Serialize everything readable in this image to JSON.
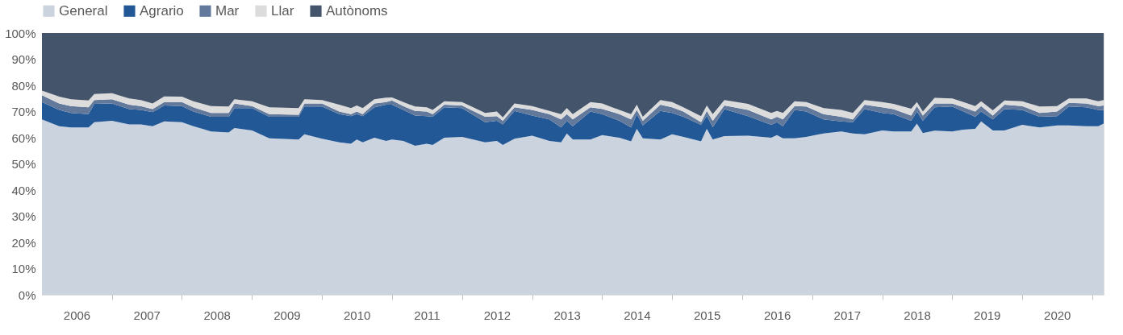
{
  "chart_data": {
    "type": "area",
    "stacked": true,
    "legend": "top",
    "grid": false,
    "x": [
      "2006-01",
      "2006-04",
      "2006-06",
      "2006-09",
      "2006-10",
      "2007-01",
      "2007-04",
      "2007-06",
      "2007-08",
      "2007-10",
      "2008-01",
      "2008-03",
      "2008-06",
      "2008-09",
      "2008-10",
      "2009-01",
      "2009-04",
      "2009-09",
      "2009-10",
      "2010-01",
      "2010-04",
      "2010-06",
      "2010-07",
      "2010-08",
      "2010-10",
      "2010-12",
      "2011-01",
      "2011-03",
      "2011-05",
      "2011-07",
      "2011-08",
      "2011-10",
      "2012-01",
      "2012-05",
      "2012-07",
      "2012-08",
      "2012-10",
      "2013-01",
      "2013-04",
      "2013-06",
      "2013-07",
      "2013-08",
      "2013-11",
      "2014-01",
      "2014-04",
      "2014-06",
      "2014-07",
      "2014-08",
      "2014-11",
      "2015-01",
      "2015-03",
      "2015-06",
      "2015-07",
      "2015-08",
      "2015-10",
      "2016-02",
      "2016-06",
      "2016-07",
      "2016-08",
      "2016-10",
      "2016-12",
      "2017-03",
      "2017-06",
      "2017-08",
      "2017-10",
      "2018-01",
      "2018-03",
      "2018-06",
      "2018-07",
      "2018-08",
      "2018-10",
      "2019-01",
      "2019-03",
      "2019-05",
      "2019-06",
      "2019-08",
      "2019-10",
      "2020-01",
      "2020-04",
      "2020-07",
      "2020-09",
      "2020-12",
      "2021-02",
      "2021-03"
    ],
    "xlim": [
      "2006-01",
      "2021-03"
    ],
    "xticks": [
      {
        "value": "2006-07",
        "label": "2006"
      },
      {
        "value": "2007-01",
        "label": null
      },
      {
        "value": "2007-07",
        "label": "2007"
      },
      {
        "value": "2008-01",
        "label": null
      },
      {
        "value": "2008-07",
        "label": "2008"
      },
      {
        "value": "2009-01",
        "label": null
      },
      {
        "value": "2009-07",
        "label": "2009"
      },
      {
        "value": "2010-01",
        "label": null
      },
      {
        "value": "2010-07",
        "label": "2010"
      },
      {
        "value": "2011-01",
        "label": null
      },
      {
        "value": "2011-07",
        "label": "2011"
      },
      {
        "value": "2012-01",
        "label": null
      },
      {
        "value": "2012-07",
        "label": "2012"
      },
      {
        "value": "2013-01",
        "label": null
      },
      {
        "value": "2013-07",
        "label": "2013"
      },
      {
        "value": "2014-01",
        "label": null
      },
      {
        "value": "2014-07",
        "label": "2014"
      },
      {
        "value": "2015-01",
        "label": null
      },
      {
        "value": "2015-07",
        "label": "2015"
      },
      {
        "value": "2016-01",
        "label": null
      },
      {
        "value": "2016-07",
        "label": "2016"
      },
      {
        "value": "2017-01",
        "label": null
      },
      {
        "value": "2017-07",
        "label": "2017"
      },
      {
        "value": "2018-01",
        "label": null
      },
      {
        "value": "2018-07",
        "label": "2018"
      },
      {
        "value": "2019-01",
        "label": null
      },
      {
        "value": "2019-07",
        "label": "2019"
      },
      {
        "value": "2020-01",
        "label": null
      },
      {
        "value": "2020-07",
        "label": "2020"
      },
      {
        "value": "2021-01",
        "label": null
      }
    ],
    "ylim": [
      0,
      100
    ],
    "yticks": [
      {
        "value": 0,
        "label": "0%"
      },
      {
        "value": 10,
        "label": "10%"
      },
      {
        "value": 20,
        "label": "20%"
      },
      {
        "value": 30,
        "label": "30%"
      },
      {
        "value": 40,
        "label": "40%"
      },
      {
        "value": 50,
        "label": "50%"
      },
      {
        "value": 60,
        "label": "60%"
      },
      {
        "value": 70,
        "label": "70%"
      },
      {
        "value": 80,
        "label": "80%"
      },
      {
        "value": 90,
        "label": "90%"
      },
      {
        "value": 100,
        "label": "100%"
      }
    ],
    "series": [
      {
        "name": "General",
        "color": "#cbd3df",
        "values": [
          67.0,
          64.4,
          63.9,
          63.9,
          65.9,
          66.5,
          65.1,
          65.1,
          64.4,
          66.2,
          65.9,
          64.4,
          62.4,
          62.0,
          63.7,
          62.8,
          59.8,
          59.3,
          61.3,
          59.6,
          58.2,
          57.7,
          59.3,
          58.2,
          60.0,
          58.8,
          59.3,
          58.8,
          56.9,
          57.7,
          57.2,
          60.0,
          60.3,
          58.2,
          58.8,
          57.2,
          59.6,
          60.8,
          58.8,
          58.2,
          61.6,
          59.3,
          59.3,
          61.0,
          60.0,
          58.6,
          63.4,
          59.8,
          59.3,
          61.3,
          60.3,
          58.6,
          63.4,
          59.3,
          60.6,
          60.8,
          60.0,
          61.0,
          59.8,
          59.8,
          60.3,
          61.6,
          62.4,
          61.6,
          61.3,
          62.8,
          62.4,
          62.4,
          65.4,
          61.8,
          62.7,
          62.4,
          63.1,
          63.4,
          66.2,
          62.8,
          62.8,
          64.9,
          63.9,
          64.7,
          64.7,
          64.4,
          64.4,
          65.4
        ]
      },
      {
        "name": "Agrario",
        "color": "#235897",
        "values": [
          6.6,
          6.2,
          5.6,
          5.1,
          7.0,
          6.6,
          5.8,
          5.5,
          5.4,
          6.1,
          6.2,
          5.6,
          5.6,
          6.0,
          7.6,
          8.5,
          8.2,
          8.7,
          10.6,
          12.3,
          10.8,
          10.5,
          9.7,
          10.0,
          11.6,
          13.8,
          13.3,
          11.8,
          11.6,
          10.5,
          10.8,
          11.6,
          11.0,
          7.7,
          7.7,
          7.9,
          10.6,
          7.7,
          8.2,
          5.7,
          4.9,
          5.1,
          10.7,
          8.0,
          6.5,
          5.3,
          5.6,
          4.9,
          10.9,
          8.2,
          7.7,
          6.3,
          5.1,
          4.6,
          10.3,
          7.4,
          4.9,
          4.9,
          4.6,
          10.8,
          9.7,
          5.4,
          3.8,
          4.3,
          9.6,
          6.7,
          6.6,
          4.1,
          4.6,
          4.7,
          8.9,
          9.5,
          6.9,
          4.6,
          3.8,
          4.2,
          8.1,
          5.7,
          4.1,
          3.5,
          7.2,
          7.2,
          6.2,
          5.2
        ]
      },
      {
        "name": "Mar",
        "color": "#62799b",
        "values": [
          2.6,
          2.5,
          2.6,
          2.6,
          1.5,
          1.6,
          1.7,
          1.5,
          1.1,
          1.3,
          1.5,
          1.6,
          1.5,
          1.5,
          1.8,
          0.8,
          1.0,
          0.8,
          1.2,
          1.2,
          1.0,
          0.8,
          1.0,
          0.8,
          1.5,
          1.0,
          1.6,
          1.5,
          1.7,
          1.8,
          1.0,
          1.0,
          1.0,
          2.1,
          1.7,
          1.4,
          1.4,
          2.1,
          2.0,
          3.1,
          2.5,
          2.6,
          1.6,
          2.0,
          2.5,
          3.1,
          1.6,
          1.8,
          2.4,
          2.1,
          2.0,
          1.0,
          1.7,
          2.6,
          1.4,
          2.4,
          2.1,
          2.1,
          2.6,
          1.5,
          1.9,
          2.0,
          1.8,
          1.1,
          1.7,
          2.1,
          1.9,
          2.0,
          2.1,
          2.0,
          1.5,
          1.2,
          1.6,
          2.0,
          2.1,
          1.5,
          1.7,
          1.5,
          1.5,
          1.8,
          1.4,
          1.5,
          1.5,
          1.7
        ]
      },
      {
        "name": "Llar",
        "color": "#dcdcdc",
        "values": [
          1.8,
          2.6,
          2.6,
          2.6,
          2.3,
          2.3,
          2.4,
          2.3,
          2.2,
          2.2,
          2.1,
          2.3,
          2.6,
          2.4,
          1.6,
          1.8,
          2.6,
          2.5,
          1.6,
          1.3,
          2.6,
          2.3,
          2.3,
          2.3,
          1.6,
          1.7,
          1.2,
          1.5,
          1.7,
          1.6,
          1.6,
          1.3,
          1.3,
          1.5,
          1.8,
          1.3,
          1.5,
          1.5,
          1.2,
          2.0,
          2.3,
          2.0,
          2.0,
          2.1,
          1.6,
          2.0,
          2.0,
          1.5,
          1.8,
          2.0,
          1.6,
          2.3,
          2.1,
          2.5,
          2.1,
          2.3,
          2.5,
          2.2,
          2.5,
          1.8,
          1.7,
          2.3,
          2.6,
          2.5,
          1.8,
          2.0,
          2.0,
          2.6,
          1.5,
          1.5,
          2.1,
          1.9,
          2.0,
          2.1,
          1.8,
          2.0,
          1.6,
          1.8,
          2.4,
          2.1,
          1.7,
          1.9,
          1.8,
          2.1
        ]
      },
      {
        "name": "Autònoms",
        "color": "#44546a",
        "values": [
          22.0,
          24.3,
          25.3,
          25.8,
          23.3,
          23.0,
          25.0,
          25.6,
          26.9,
          24.2,
          24.3,
          26.1,
          27.9,
          28.1,
          25.3,
          26.1,
          28.4,
          28.7,
          25.3,
          25.6,
          27.4,
          28.7,
          27.7,
          28.7,
          25.3,
          24.7,
          24.6,
          26.4,
          28.1,
          28.4,
          29.4,
          26.1,
          26.4,
          30.5,
          30.0,
          32.2,
          26.9,
          27.9,
          29.8,
          31.0,
          28.7,
          31.0,
          26.4,
          26.9,
          29.4,
          31.0,
          27.4,
          32.0,
          25.6,
          26.4,
          28.4,
          31.8,
          27.7,
          31.0,
          25.6,
          27.1,
          30.5,
          29.8,
          30.5,
          26.1,
          26.4,
          28.7,
          29.4,
          30.5,
          25.6,
          26.4,
          27.1,
          28.9,
          26.4,
          30.0,
          24.8,
          25.0,
          26.4,
          27.9,
          26.1,
          29.5,
          25.8,
          26.1,
          28.1,
          27.9,
          25.0,
          25.0,
          26.1,
          25.6
        ]
      }
    ]
  }
}
